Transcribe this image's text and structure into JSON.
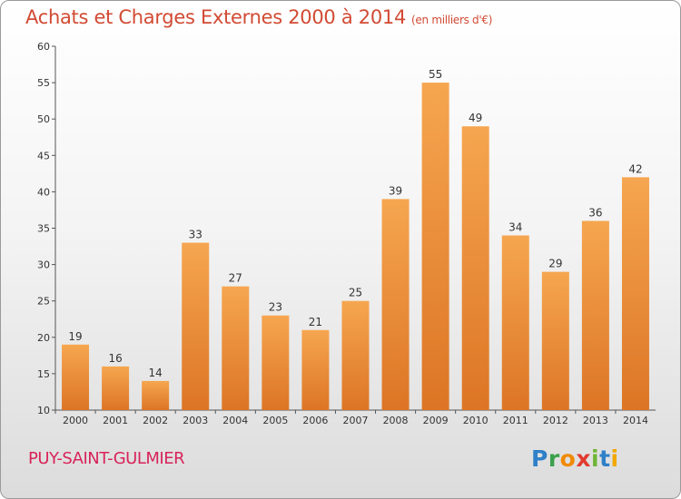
{
  "title": "Achats et Charges Externes 2000 à 2014",
  "unit": "(en milliers d'€)",
  "commune": "PUY-SAINT-GULMIER",
  "logo": "Proxiti",
  "colors": {
    "bar_top": "#f6a650",
    "bar_bottom": "#dc7525",
    "title": "#d24a33",
    "commune": "#d8245a"
  },
  "chart_data": {
    "type": "bar",
    "title": "Achats et Charges Externes 2000 à 2014",
    "subtitle": "(en milliers d'€)",
    "categories": [
      "2000",
      "2001",
      "2002",
      "2003",
      "2004",
      "2005",
      "2006",
      "2007",
      "2008",
      "2009",
      "2010",
      "2011",
      "2012",
      "2013",
      "2014"
    ],
    "values": [
      19,
      16,
      14,
      33,
      27,
      23,
      21,
      25,
      39,
      55,
      49,
      34,
      29,
      36,
      42
    ],
    "ylim": [
      10,
      60
    ],
    "yticks": [
      10,
      15,
      20,
      25,
      30,
      35,
      40,
      45,
      50,
      55,
      60
    ],
    "grid": false,
    "legend": "none"
  }
}
